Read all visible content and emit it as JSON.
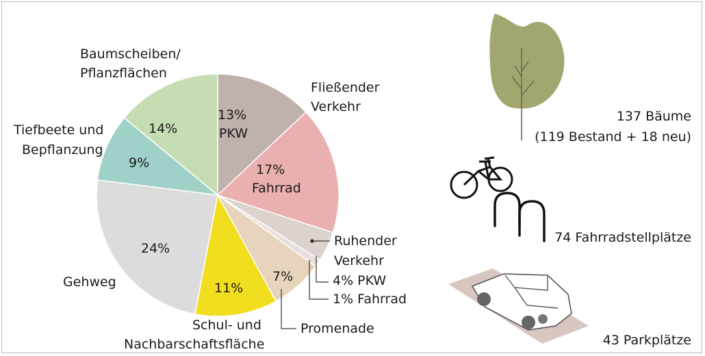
{
  "chart_data": {
    "type": "pie",
    "slices": [
      {
        "key": "pkw_moving",
        "value": 13,
        "pct_label": "13%",
        "sub_label": "PKW",
        "color": "#bfb1ab"
      },
      {
        "key": "fahrrad_moving",
        "value": 17,
        "pct_label": "17%",
        "sub_label": "Fahrrad",
        "color": "#eab0af"
      },
      {
        "key": "pkw_parked",
        "value": 4,
        "pct_label": "",
        "sub_label": "",
        "color": "#dbd3ce"
      },
      {
        "key": "fahrrad_parked",
        "value": 1,
        "pct_label": "",
        "sub_label": "",
        "color": "#e6dfdb"
      },
      {
        "key": "promenade",
        "value": 7,
        "pct_label": "7%",
        "sub_label": "",
        "color": "#e6d4bd"
      },
      {
        "key": "schul",
        "value": 11,
        "pct_label": "11%",
        "sub_label": "",
        "color": "#f1de1f"
      },
      {
        "key": "gehweg",
        "value": 24,
        "pct_label": "24%",
        "sub_label": "",
        "color": "#dcdcdc"
      },
      {
        "key": "tiefbeete",
        "value": 9,
        "pct_label": "9%",
        "sub_label": "",
        "color": "#9fd1c8"
      },
      {
        "key": "baumscheiben",
        "value": 14,
        "pct_label": "14%",
        "sub_label": "",
        "color": "#c6dcb2"
      }
    ],
    "category_labels": {
      "baumscheiben": [
        "Baumscheiben/",
        "Pflanzflächen"
      ],
      "fliessend": [
        "Fließender",
        "Verkehr"
      ],
      "tiefbeete": [
        "Tiefbeete und",
        "Bepflanzung"
      ],
      "ruhend": [
        "Ruhender",
        "Verkehr"
      ],
      "ruhend_pkw": "4% PKW",
      "ruhend_fahrrad": "1% Fahrrad",
      "gehweg": "Gehweg",
      "promenade": "Promenade",
      "schul": [
        "Schul- und",
        "Nachbarschaftsfläche"
      ]
    }
  },
  "stats": {
    "trees_line1": "137 Bäume",
    "trees_line2": "(119 Bestand + 18 neu)",
    "bikes": "74 Fahrradstellplätze",
    "parking": "43 Parkplätze"
  },
  "icons": {
    "tree": "tree-icon",
    "bike": "bicycle-icon",
    "rack": "bike-rack-icon",
    "car": "car-icon"
  }
}
